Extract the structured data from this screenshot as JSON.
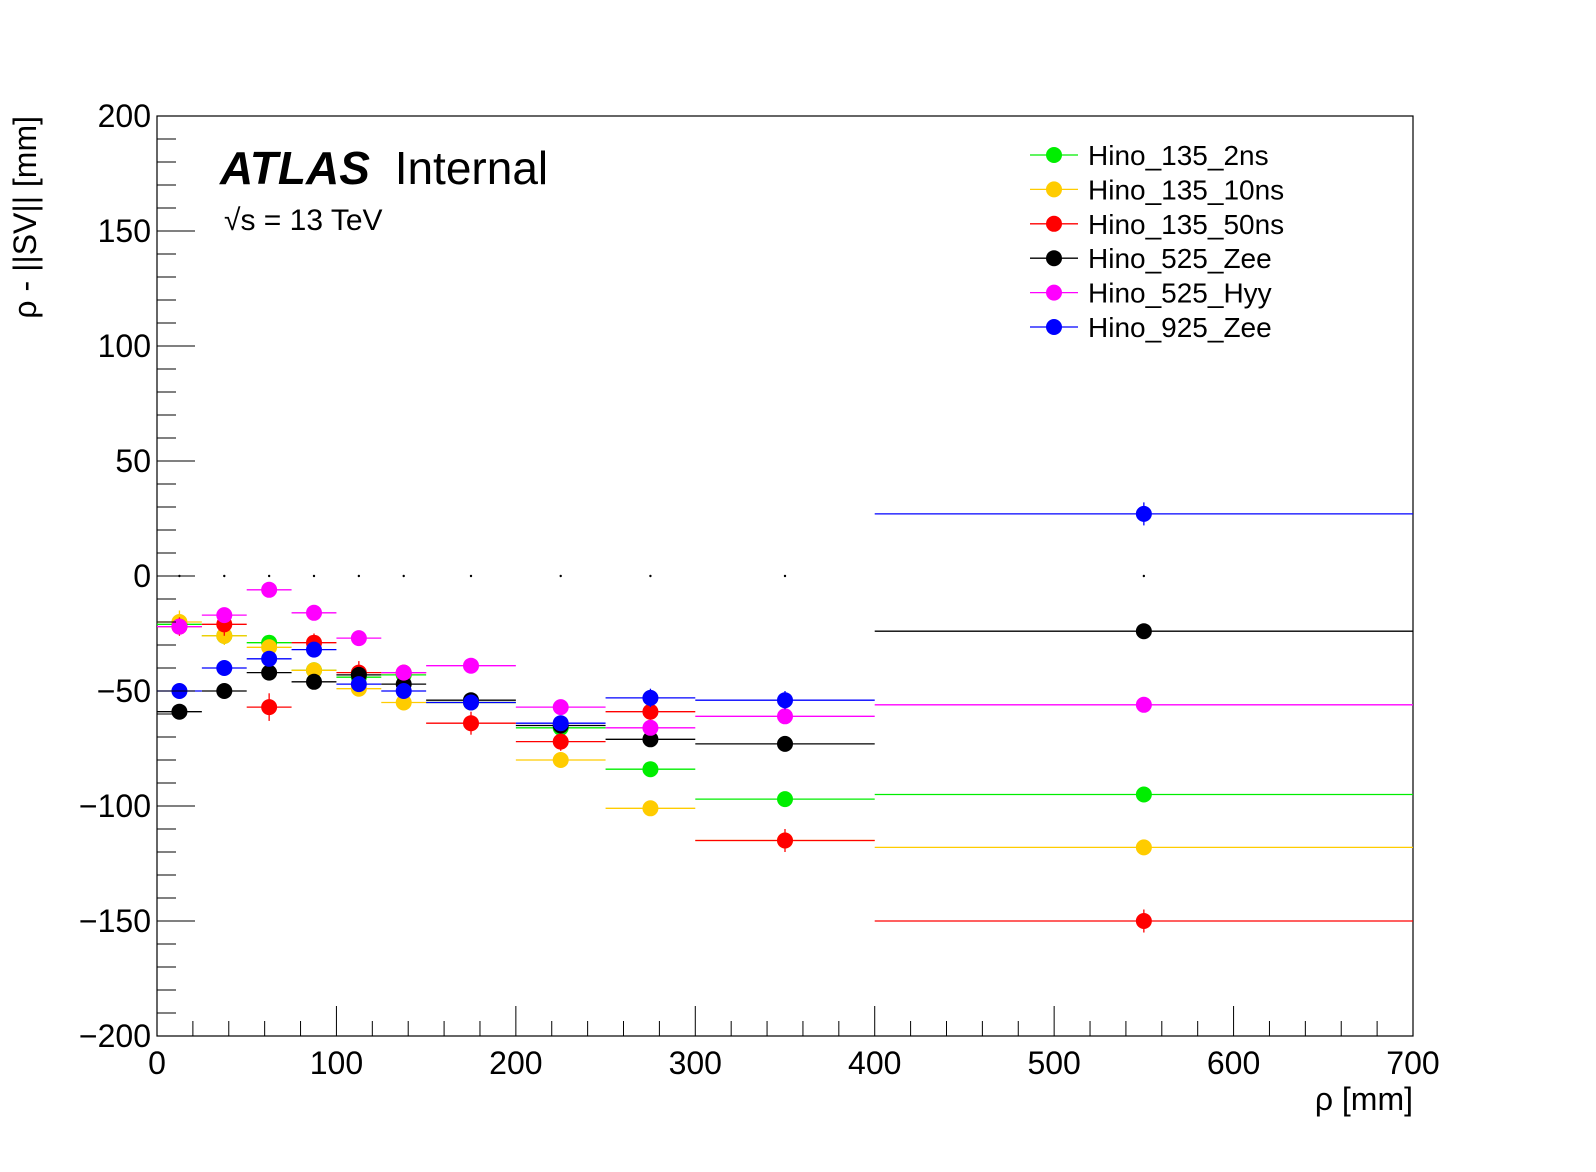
{
  "chart_data": {
    "type": "scatter",
    "title": "",
    "xlabel": "ρ [mm]",
    "ylabel": "ρ - ||SV|| [mm]",
    "xlim": [
      0,
      700
    ],
    "ylim": [
      -200,
      200
    ],
    "x_ticks": [
      "0",
      "100",
      "200",
      "300",
      "400",
      "500",
      "600",
      "700"
    ],
    "y_ticks": [
      "−200",
      "−150",
      "−100",
      "−50",
      "0",
      "50",
      "100",
      "150",
      "200"
    ],
    "grid": false,
    "legend_position": "top-right",
    "annotations": {
      "atlas_bold": "ATLAS",
      "atlas_label": "Internal",
      "energy_radical": "√s",
      "energy_label": " = 13 TeV"
    },
    "bins": [
      {
        "lo": 0,
        "hi": 25,
        "center": 12.5
      },
      {
        "lo": 25,
        "hi": 50,
        "center": 37.5
      },
      {
        "lo": 50,
        "hi": 75,
        "center": 62.5
      },
      {
        "lo": 75,
        "hi": 100,
        "center": 87.5
      },
      {
        "lo": 100,
        "hi": 125,
        "center": 112.5
      },
      {
        "lo": 125,
        "hi": 150,
        "center": 137.5
      },
      {
        "lo": 150,
        "hi": 200,
        "center": 175
      },
      {
        "lo": 200,
        "hi": 250,
        "center": 225
      },
      {
        "lo": 250,
        "hi": 300,
        "center": 275
      },
      {
        "lo": 300,
        "hi": 400,
        "center": 350
      },
      {
        "lo": 400,
        "hi": 700,
        "center": 550
      }
    ],
    "series": [
      {
        "name": "Hino_135_2ns",
        "color": "#00ee00",
        "values": [
          -21,
          -26,
          -29,
          -41,
          -44,
          -43,
          -55,
          -66,
          -84,
          -97,
          -95
        ],
        "errors": [
          3,
          3,
          3,
          3,
          3,
          3,
          3,
          3,
          3,
          3,
          3
        ]
      },
      {
        "name": "Hino_135_10ns",
        "color": "#ffcc00",
        "values": [
          -20,
          -26,
          -31,
          -41,
          -49,
          -55,
          -55,
          -80,
          -101,
          -115,
          -118
        ],
        "errors": [
          5,
          4,
          3,
          3,
          3,
          3,
          3,
          3,
          3,
          3,
          3
        ]
      },
      {
        "name": "Hino_135_50ns",
        "color": "#ff0000",
        "values": [
          -22,
          -21,
          -57,
          -29,
          -42,
          -42,
          -64,
          -72,
          -59,
          -115,
          -150
        ],
        "errors": [
          4,
          5,
          6,
          4,
          5,
          3,
          5,
          4,
          4,
          5,
          5
        ]
      },
      {
        "name": "Hino_525_Zee",
        "color": "#000000",
        "values": [
          -59,
          -50,
          -42,
          -46,
          -43,
          -47,
          -54,
          -65,
          -71,
          -73,
          -24
        ],
        "errors": [
          3,
          3,
          3,
          3,
          3,
          3,
          3,
          3,
          3,
          3,
          3
        ]
      },
      {
        "name": "Hino_525_Hyy",
        "color": "#ff00ff",
        "values": [
          -22,
          -17,
          -6,
          -16,
          -27,
          -42,
          -39,
          -57,
          -66,
          -61,
          -56
        ],
        "errors": [
          3,
          3,
          3,
          3,
          3,
          3,
          3,
          3,
          3,
          3,
          3
        ]
      },
      {
        "name": "Hino_925_Zee",
        "color": "#0000ff",
        "values": [
          -50,
          -40,
          -36,
          -32,
          -47,
          -50,
          -55,
          -64,
          -53,
          -54,
          27
        ],
        "errors": [
          3,
          3,
          3,
          3,
          3,
          3,
          3,
          3,
          4,
          4,
          5
        ]
      }
    ]
  }
}
